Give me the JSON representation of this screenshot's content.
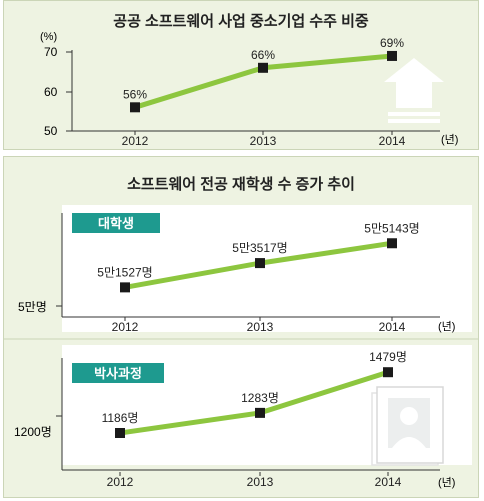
{
  "colors": {
    "accent": "#8dc63f",
    "marker": "#1a1a1a",
    "badge": "#1e9a8f",
    "panel": "#eef3e2",
    "axis": "#333333"
  },
  "chart1": {
    "title": "공공 소프트웨어 사업 중소기업 수주 비중",
    "unit": "(%)",
    "xunit": "(년)",
    "yticks": [
      "70",
      "60",
      "50"
    ],
    "icon": "upload-arrow-icon"
  },
  "chart2": {
    "title": "소프트웨어 전공 재학생 수 증가 추이",
    "badge": "대학생",
    "ylabel": "5만명",
    "xunit": "(년)"
  },
  "chart3": {
    "badge": "박사과정",
    "ylabel": "1200명",
    "xunit": "(년)",
    "icon": "person-card-icon"
  },
  "chart_data": [
    {
      "type": "line",
      "title": "공공 소프트웨어 사업 중소기업 수주 비중",
      "categories": [
        "2012",
        "2013",
        "2014"
      ],
      "values": [
        56,
        66,
        69
      ],
      "labels": [
        "56%",
        "66%",
        "69%"
      ],
      "ylabel": "(%)",
      "xlabel": "(년)",
      "ylim": [
        50,
        70
      ]
    },
    {
      "type": "line",
      "title": "소프트웨어 전공 재학생 수 증가 추이",
      "categories": [
        "2012",
        "2013",
        "2014"
      ],
      "series": [
        {
          "name": "대학생",
          "values": [
            51527,
            53517,
            55143
          ]
        }
      ],
      "labels": [
        "5만1527명",
        "5만3517명",
        "5만5143명"
      ],
      "ylabel": "5만명",
      "xlabel": "(년)",
      "ylim": [
        50000,
        56000
      ]
    },
    {
      "type": "line",
      "categories": [
        "2012",
        "2013",
        "2014"
      ],
      "series": [
        {
          "name": "박사과정",
          "values": [
            1186,
            1283,
            1479
          ]
        }
      ],
      "labels": [
        "1186명",
        "1283명",
        "1479명"
      ],
      "ylabel": "1200명",
      "xlabel": "(년)",
      "ylim": [
        1150,
        1500
      ]
    }
  ]
}
